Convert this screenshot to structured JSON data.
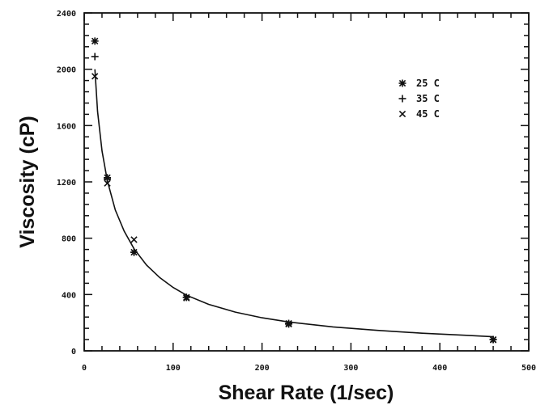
{
  "chart_data": {
    "type": "scatter",
    "title": "",
    "xlabel": "Shear Rate (1/sec)",
    "ylabel": "Viscosity (cP)",
    "xlim": [
      0,
      500
    ],
    "ylim": [
      0,
      2400
    ],
    "x_ticks": [
      "0",
      "100",
      "200",
      "300",
      "400",
      "500"
    ],
    "y_ticks": [
      "0",
      "400",
      "800",
      "1200",
      "1600",
      "2000",
      "2400"
    ],
    "grid": false,
    "legend_position": "top-right",
    "series": [
      {
        "name": "25 C",
        "marker": "star",
        "x": [
          12,
          26,
          56,
          115,
          230,
          460
        ],
        "y": [
          2200,
          1230,
          700,
          380,
          195,
          80
        ]
      },
      {
        "name": "35 C",
        "marker": "plus",
        "x": [
          12,
          26,
          56,
          115,
          230,
          460
        ],
        "y": [
          2090,
          1220,
          700,
          380,
          190,
          80
        ]
      },
      {
        "name": "45 C",
        "marker": "cross",
        "x": [
          12,
          26,
          56,
          115,
          230,
          460
        ],
        "y": [
          1950,
          1190,
          790,
          375,
          190,
          78
        ]
      }
    ],
    "fit_curve": {
      "x": [
        12,
        15,
        20,
        26,
        35,
        45,
        56,
        70,
        85,
        100,
        115,
        140,
        170,
        200,
        230,
        280,
        330,
        380,
        430,
        460
      ],
      "y": [
        2000,
        1700,
        1420,
        1210,
        1000,
        850,
        725,
        610,
        520,
        450,
        395,
        330,
        275,
        235,
        205,
        170,
        145,
        125,
        110,
        100
      ]
    }
  },
  "colors": {
    "ink": "#111111",
    "background": "#ffffff"
  }
}
